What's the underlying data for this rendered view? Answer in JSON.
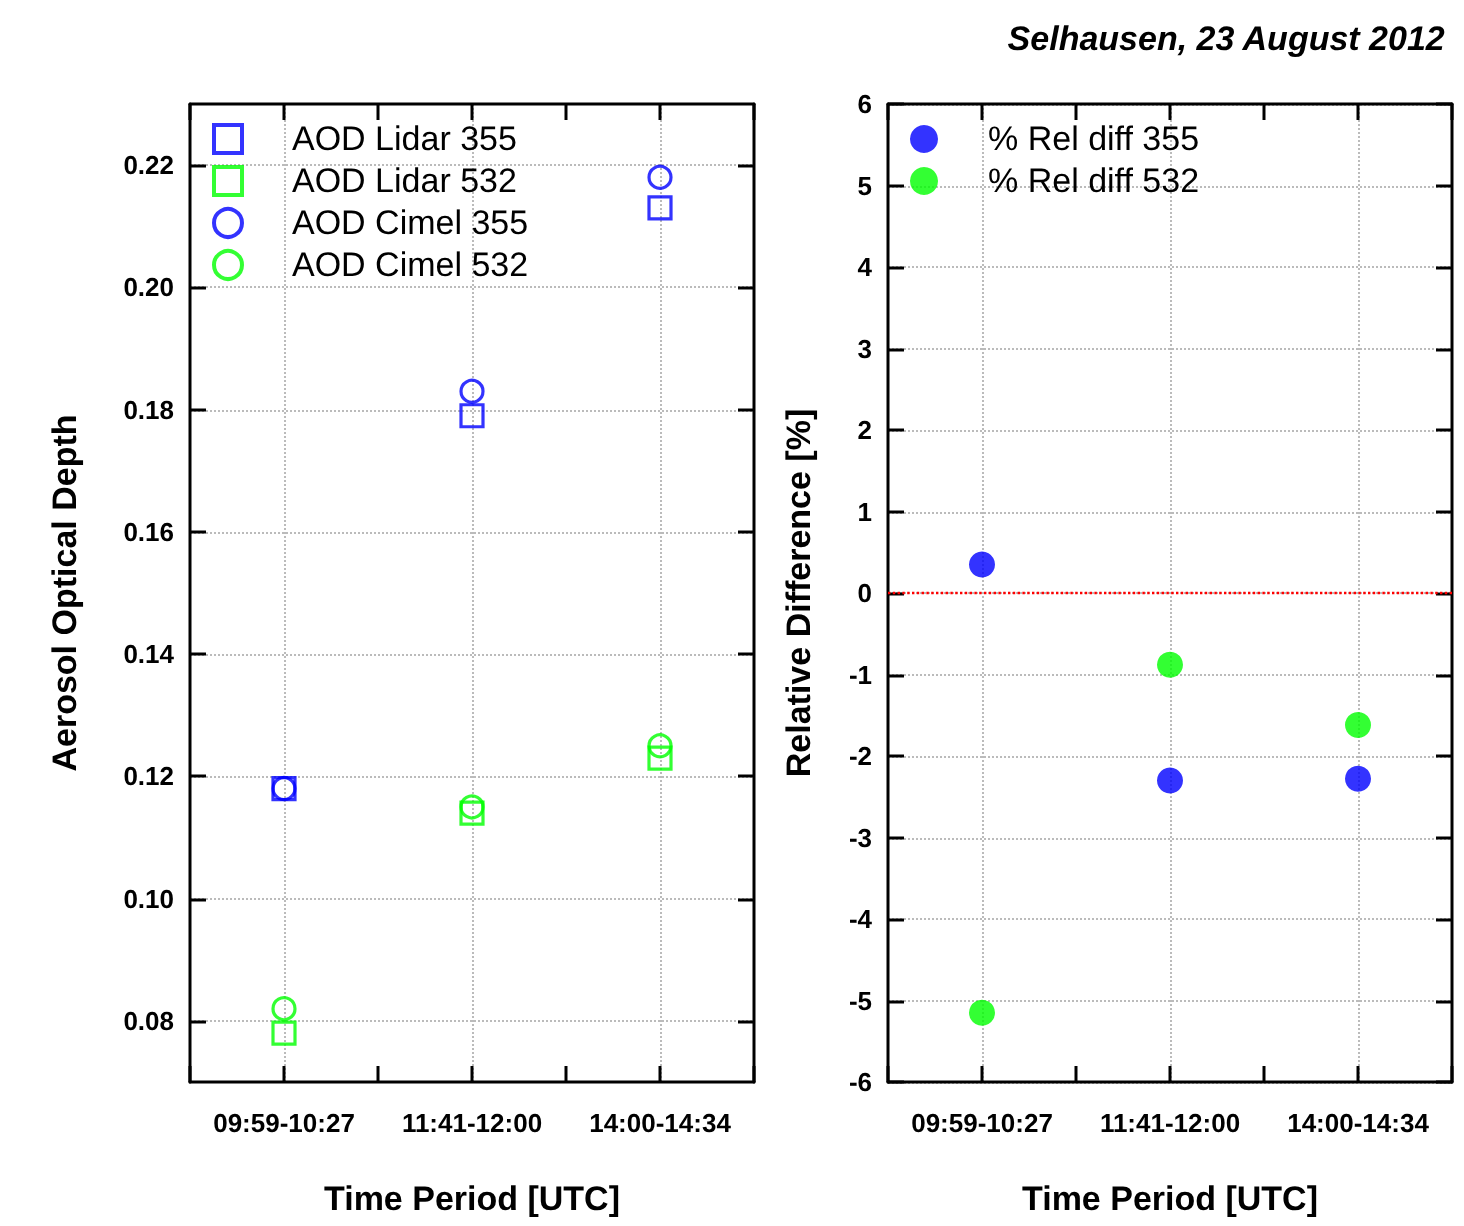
{
  "chart_data": [
    {
      "type": "scatter",
      "xlabel": "Time Period [UTC]",
      "ylabel": "Aerosol Optical Depth",
      "categories": [
        "09:59-10:27",
        "11:41-12:00",
        "14:00-14:34"
      ],
      "series": [
        {
          "name": "AOD Lidar 355",
          "color": "#0000ff",
          "marker": "square",
          "values": [
            0.118,
            0.179,
            0.213
          ]
        },
        {
          "name": "AOD Lidar 532",
          "color": "#00ff00",
          "marker": "square",
          "values": [
            0.078,
            0.114,
            0.123
          ]
        },
        {
          "name": "AOD Cimel 355",
          "color": "#0000ff",
          "marker": "circle",
          "values": [
            0.118,
            0.183,
            0.218
          ]
        },
        {
          "name": "AOD Cimel 532",
          "color": "#00ff00",
          "marker": "circle",
          "values": [
            0.082,
            0.115,
            0.125
          ]
        }
      ],
      "ylim": [
        0.07,
        0.23
      ],
      "yticks": [
        0.08,
        {
          "value": 0.1,
          "label": "0.10"
        },
        0.12,
        0.14,
        0.16,
        0.18,
        {
          "value": 0.2,
          "label": "0.20"
        },
        0.22
      ],
      "grid": true,
      "legend": "top left"
    },
    {
      "type": "scatter",
      "title": "Selhausen, 23 August 2012",
      "xlabel": "Time Period [UTC]",
      "ylabel": "Relative Difference [%]",
      "categories": [
        "09:59-10:27",
        "11:41-12:00",
        "14:00-14:34"
      ],
      "marker": "circle",
      "series": [
        {
          "name": "% Rel diff 355",
          "color": "#0000ff",
          "values": [
            0.35,
            -2.3,
            -2.28
          ]
        },
        {
          "name": "% Rel diff 532",
          "color": "#00ff00",
          "values": [
            -5.15,
            -0.88,
            -1.62
          ]
        }
      ],
      "ylim": [
        -6,
        6
      ],
      "yticks": [
        -6,
        -5,
        -4,
        -3,
        -2,
        -1,
        0,
        1,
        2,
        3,
        4,
        5,
        6
      ],
      "grid": true,
      "legend": "top left",
      "ref_lines": [
        {
          "axis": "y",
          "value": 0,
          "color": "#ff0000",
          "line_style": "dotted"
        }
      ]
    }
  ]
}
